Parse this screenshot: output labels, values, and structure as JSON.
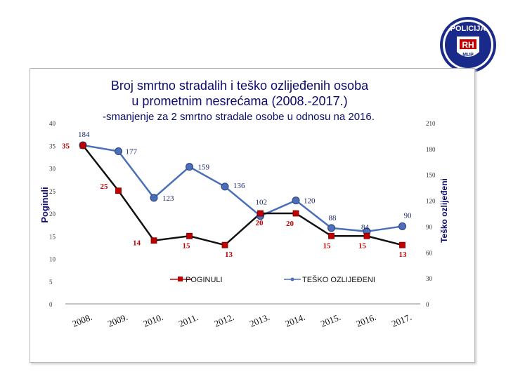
{
  "logo": {
    "ring_text": "POLICIJA",
    "rh": "RH",
    "mup": "MUP"
  },
  "colors": {
    "poginuli": "#c00000",
    "tesko": "#4a6fb8",
    "title": "#0c0c6e"
  },
  "chart_data": {
    "type": "line",
    "title": "Broj smrtno stradalih i teško ozlijeđenih osoba",
    "title2": "u prometnim nesrećama  (2008.-2017.)",
    "subtitle": "-smanjenje za 2 smrtno stradale osobe u odnosu na 2016.",
    "ylabel": "Poginuli",
    "y2label": "Teško ozlijeđeni",
    "categories": [
      "2008.",
      "2009.",
      "2010.",
      "2011.",
      "2012.",
      "2013.",
      "2014.",
      "2015.",
      "2016.",
      "2017."
    ],
    "ylim": [
      0,
      40
    ],
    "y_ticks": [
      0,
      5,
      10,
      15,
      20,
      25,
      30,
      35,
      40
    ],
    "y2lim": [
      0,
      210
    ],
    "y2_ticks": [
      0,
      30,
      60,
      90,
      120,
      150,
      180,
      210
    ],
    "series": [
      {
        "name": "POGINULI",
        "axis": "left",
        "values": [
          35,
          25,
          14,
          15,
          13,
          20,
          20,
          15,
          15,
          13
        ]
      },
      {
        "name": "TEŠKO OZLIJEĐENI",
        "axis": "right",
        "values": [
          184,
          177,
          123,
          159,
          136,
          102,
          120,
          88,
          84,
          90
        ]
      }
    ],
    "legend_position": "bottom-center",
    "grid": false
  }
}
